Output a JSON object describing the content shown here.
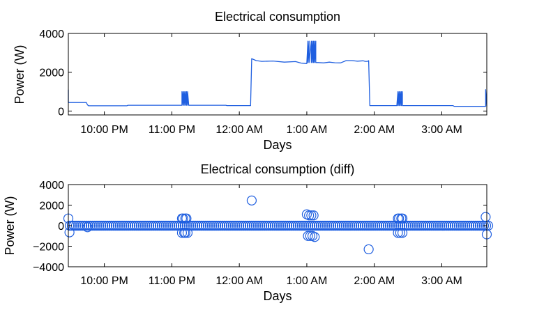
{
  "chart_data": [
    {
      "type": "line",
      "title": "Electrical consumption",
      "xlabel": "Days",
      "ylabel": "Power (W)",
      "xlim": [
        "21:28",
        "03:40"
      ],
      "ylim": [
        -200,
        4000
      ],
      "yticks": [
        0,
        2000,
        4000
      ],
      "ytick_labels": [
        "0",
        "2000",
        "4000"
      ],
      "xticks": [
        "22:00",
        "23:00",
        "00:00",
        "01:00",
        "02:00",
        "03:00"
      ],
      "xtick_labels": [
        "10:00 PM",
        "11:00 PM",
        "12:00 AM",
        "1:00 AM",
        "2:00 AM",
        "3:00 AM"
      ],
      "grid": false,
      "color": "#1f5fe0",
      "series": [
        {
          "x": [
            "21:28",
            "21:28",
            "21:28",
            "21:29",
            "21:29",
            "21:44",
            "21:45",
            "21:46",
            "22:20",
            "22:21",
            "23:09",
            "23:09",
            "23:10",
            "23:10",
            "23:11",
            "23:11",
            "23:12",
            "23:12",
            "23:13",
            "23:13",
            "23:14",
            "23:14",
            "23:15",
            "23:16",
            "23:48",
            "23:49",
            "00:10",
            "00:11",
            "00:13",
            "00:15",
            "00:20",
            "00:30",
            "00:40",
            "00:50",
            "00:55",
            "00:59",
            "01:00",
            "01:01",
            "01:01",
            "01:02",
            "01:02",
            "01:04",
            "01:04",
            "01:05",
            "01:05",
            "01:06",
            "01:06",
            "01:07",
            "01:07",
            "01:08",
            "01:08",
            "01:10",
            "01:15",
            "01:20",
            "01:25",
            "01:30",
            "01:35",
            "01:40",
            "01:45",
            "01:50",
            "01:52",
            "01:54",
            "01:55",
            "01:56",
            "02:20",
            "02:21",
            "02:21",
            "02:22",
            "02:22",
            "02:23",
            "02:23",
            "02:24",
            "02:24",
            "02:25",
            "02:25",
            "02:26",
            "02:27",
            "02:55",
            "03:10",
            "03:11",
            "03:39",
            "03:39",
            "03:40"
          ],
          "y": [
            1100,
            450,
            440,
            440,
            440,
            440,
            320,
            270,
            270,
            300,
            300,
            1000,
            300,
            1000,
            300,
            1000,
            300,
            1000,
            300,
            1000,
            300,
            1000,
            300,
            300,
            300,
            280,
            280,
            2700,
            2650,
            2600,
            2560,
            2580,
            2520,
            2550,
            2470,
            2450,
            2450,
            3600,
            2500,
            3600,
            2500,
            3600,
            2500,
            3600,
            2500,
            3600,
            2500,
            3600,
            2500,
            3600,
            2500,
            2500,
            2480,
            2520,
            2490,
            2480,
            2600,
            2600,
            2570,
            2590,
            2560,
            2560,
            2600,
            280,
            280,
            1000,
            280,
            1000,
            280,
            1000,
            280,
            1000,
            280,
            1000,
            280,
            280,
            280,
            280,
            280,
            240,
            240,
            1100,
            240
          ]
        }
      ]
    },
    {
      "type": "scatter",
      "title": "Electrical consumption (diff)",
      "xlabel": "Days",
      "ylabel": "Power (W)",
      "xlim": [
        "21:28",
        "03:40"
      ],
      "ylim": [
        -4000,
        4000
      ],
      "yticks": [
        -4000,
        -2000,
        0,
        2000,
        4000
      ],
      "ytick_labels": [
        "−4000",
        "−2000",
        "0",
        "2000",
        "4000"
      ],
      "xticks": [
        "22:00",
        "23:00",
        "00:00",
        "01:00",
        "02:00",
        "03:00"
      ],
      "xtick_labels": [
        "10:00 PM",
        "11:00 PM",
        "12:00 AM",
        "1:00 AM",
        "2:00 AM",
        "3:00 AM"
      ],
      "grid": false,
      "marker": "circle",
      "color": "#1f5fe0",
      "series": [
        {
          "x": [
            "21:28",
            "21:29",
            "21:45",
            "23:09",
            "23:09",
            "23:10",
            "23:11",
            "23:12",
            "23:12",
            "23:13",
            "23:14",
            "00:11",
            "01:00",
            "01:01",
            "01:02",
            "01:03",
            "01:04",
            "01:05",
            "01:06",
            "01:07",
            "01:55",
            "02:21",
            "02:21",
            "02:22",
            "02:23",
            "02:24",
            "02:25",
            "02:25",
            "03:39",
            "03:40"
          ],
          "y": [
            700,
            -650,
            -150,
            700,
            -700,
            700,
            -700,
            700,
            -700,
            700,
            -700,
            2450,
            1100,
            -1000,
            1000,
            -1000,
            1000,
            -1000,
            1000,
            -1100,
            -2300,
            700,
            -700,
            700,
            -700,
            700,
            -700,
            700,
            850,
            -850
          ]
        }
      ]
    }
  ]
}
